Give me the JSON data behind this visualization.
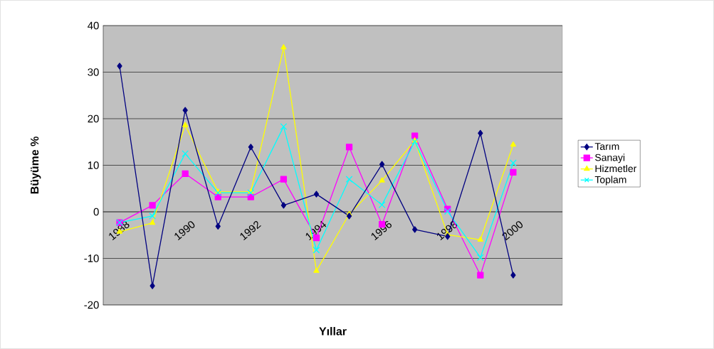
{
  "chart_data": {
    "type": "line",
    "xlabel": "Yıllar",
    "ylabel": "Büyüme %",
    "categories": [
      "1988",
      null,
      "1990",
      null,
      "1992",
      null,
      "1994",
      null,
      "1996",
      null,
      "1998",
      null,
      "2000"
    ],
    "series": [
      {
        "name": "Tarım",
        "color": "#000080",
        "marker": "diamond",
        "values": [
          31.3,
          -15.9,
          21.8,
          -3.1,
          13.9,
          1.4,
          3.8,
          -0.9,
          10.2,
          -3.8,
          -5.3,
          16.9,
          -13.6
        ]
      },
      {
        "name": "Sanayi",
        "color": "#ff00ff",
        "marker": "square",
        "values": [
          -2.3,
          1.4,
          8.2,
          3.2,
          3.2,
          7.0,
          -5.6,
          13.9,
          -2.7,
          16.3,
          0.6,
          -13.6,
          8.5
        ]
      },
      {
        "name": "Hizmetler",
        "color": "#ffff00",
        "marker": "triangle",
        "values": [
          -4.3,
          -2.4,
          18.6,
          4.3,
          4.3,
          35.3,
          -12.7,
          -0.5,
          6.7,
          15.3,
          -4.9,
          -6.0,
          14.4
        ]
      },
      {
        "name": "Toplam",
        "color": "#00ffff",
        "marker": "cross",
        "values": [
          -2.3,
          -0.9,
          12.5,
          4.1,
          4.1,
          18.3,
          -8.2,
          7.0,
          1.5,
          15.1,
          0.1,
          -9.8,
          10.5
        ]
      }
    ],
    "ylim": [
      -20,
      40
    ],
    "yticks": [
      -20,
      -10,
      0,
      10,
      20,
      30,
      40
    ],
    "grid": "y",
    "legend": "right"
  }
}
